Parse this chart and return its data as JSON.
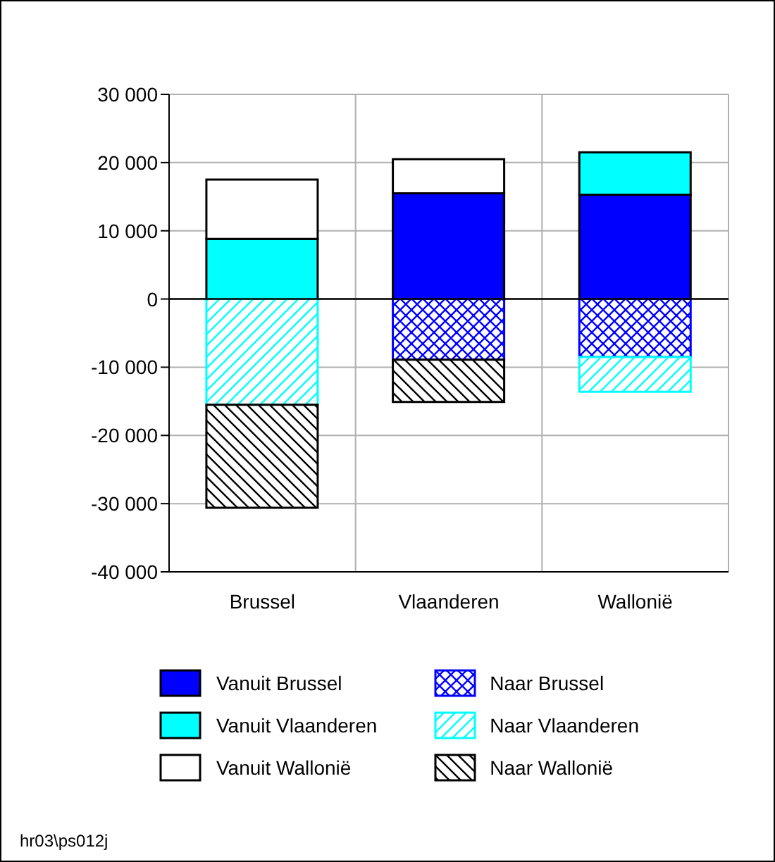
{
  "chart_data": {
    "type": "bar",
    "stacked": true,
    "categories": [
      "Brussel",
      "Vlaanderen",
      "Wallonië"
    ],
    "series": [
      {
        "name": "Vanuit Brussel",
        "color": "#0000ff",
        "values": [
          null,
          15500,
          15300
        ]
      },
      {
        "name": "Vanuit Vlaanderen",
        "color": "#00ffff",
        "values": [
          8800,
          null,
          6200
        ]
      },
      {
        "name": "Vanuit Wallonië",
        "color": "#ffffff",
        "values": [
          8700,
          5000,
          null
        ]
      },
      {
        "name": "Naar Brussel",
        "color": "#0000ff",
        "values": [
          null,
          -8900,
          -8500
        ]
      },
      {
        "name": "Naar Vlaanderen",
        "color": "#00ffff",
        "values": [
          -15500,
          null,
          -5100
        ]
      },
      {
        "name": "Naar Wallonië",
        "color": "#000000",
        "values": [
          -15100,
          -6200,
          null
        ]
      }
    ],
    "ylim": [
      -40000,
      30000
    ],
    "yticks": [
      {
        "value": -40000,
        "label": "-40 000"
      },
      {
        "value": -30000,
        "label": "-30 000"
      },
      {
        "value": -20000,
        "label": "-20 000"
      },
      {
        "value": -10000,
        "label": "-10 000"
      },
      0,
      {
        "value": 10000,
        "label": "10 000"
      },
      {
        "value": 20000,
        "label": "20 000"
      },
      {
        "value": 30000,
        "label": "30 000"
      }
    ],
    "ref_lines": [
      {
        "axis": "y",
        "value": 0,
        "color": "#000000"
      }
    ],
    "grid": true,
    "legend": "bottom",
    "annotations": [
      "hr03\\ps012j"
    ]
  }
}
